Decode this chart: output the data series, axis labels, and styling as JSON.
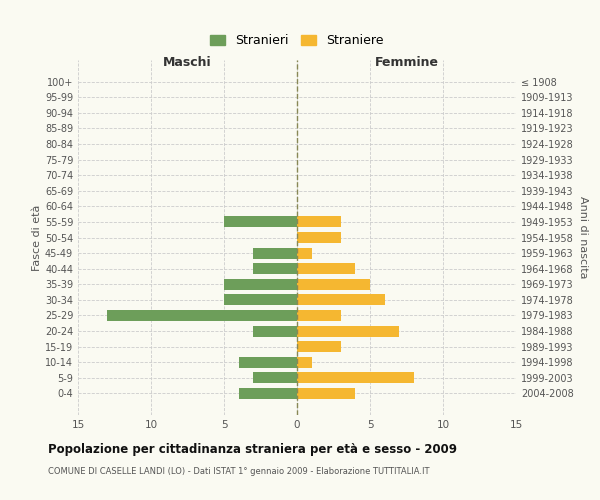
{
  "age_groups": [
    "100+",
    "95-99",
    "90-94",
    "85-89",
    "80-84",
    "75-79",
    "70-74",
    "65-69",
    "60-64",
    "55-59",
    "50-54",
    "45-49",
    "40-44",
    "35-39",
    "30-34",
    "25-29",
    "20-24",
    "15-19",
    "10-14",
    "5-9",
    "0-4"
  ],
  "birth_years": [
    "≤ 1908",
    "1909-1913",
    "1914-1918",
    "1919-1923",
    "1924-1928",
    "1929-1933",
    "1934-1938",
    "1939-1943",
    "1944-1948",
    "1949-1953",
    "1954-1958",
    "1959-1963",
    "1964-1968",
    "1969-1973",
    "1974-1978",
    "1979-1983",
    "1984-1988",
    "1989-1993",
    "1994-1998",
    "1999-2003",
    "2004-2008"
  ],
  "maschi": [
    0,
    0,
    0,
    0,
    0,
    0,
    0,
    0,
    0,
    5,
    0,
    3,
    3,
    5,
    5,
    13,
    3,
    0,
    4,
    3,
    4
  ],
  "femmine": [
    0,
    0,
    0,
    0,
    0,
    0,
    0,
    0,
    0,
    3,
    3,
    1,
    4,
    5,
    6,
    3,
    7,
    3,
    1,
    8,
    4
  ],
  "maschi_color": "#6d9e5a",
  "femmine_color": "#f5b731",
  "grid_color": "#cccccc",
  "center_line_color": "#888855",
  "title": "Popolazione per cittadinanza straniera per età e sesso - 2009",
  "subtitle": "COMUNE DI CASELLE LANDI (LO) - Dati ISTAT 1° gennaio 2009 - Elaborazione TUTTITALIA.IT",
  "xlabel_left": "Maschi",
  "xlabel_right": "Femmine",
  "ylabel_left": "Fasce di età",
  "ylabel_right": "Anni di nascita",
  "legend_stranieri": "Stranieri",
  "legend_straniere": "Straniere",
  "xlim": 15,
  "bar_height": 0.7,
  "background_color": "#fafaf2"
}
